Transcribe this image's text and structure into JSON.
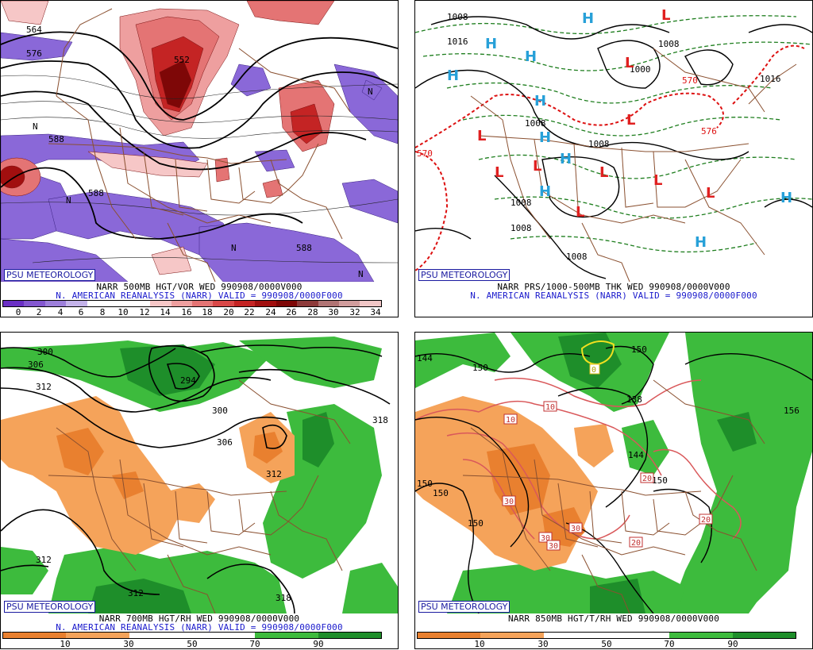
{
  "logo": "PSU METEOROLOGY",
  "panels": {
    "p1": {
      "line1": "NARR 500MB HGT/VOR WED 990908/0000V000",
      "line2": "N. AMERICAN REANALYSIS (NARR) VALID = 990908/0000F000",
      "scale_labels": [
        "0",
        "2",
        "4",
        "6",
        "8",
        "10",
        "12",
        "14",
        "16",
        "18",
        "20",
        "22",
        "24",
        "26",
        "28",
        "30",
        "32",
        "34"
      ],
      "scale_colors": [
        "#6a2fc4",
        "#8457d0",
        "#9d7fdb",
        "#c4b3ea",
        "#ffffff",
        "#ffffff",
        "#ffffff",
        "#f6c7c7",
        "#ee9f9f",
        "#e47474",
        "#d94848",
        "#c42424",
        "#a10f0f",
        "#7e0707",
        "#8d3a3a",
        "#b07474",
        "#d19d9d",
        "#f0c6c6"
      ],
      "map_labels": [
        {
          "t": "564"
        },
        {
          "t": "576"
        },
        {
          "t": "552"
        },
        {
          "t": "588"
        },
        {
          "t": "588"
        },
        {
          "t": "588"
        },
        {
          "t": "N"
        },
        {
          "t": "N"
        },
        {
          "t": "N"
        },
        {
          "t": "N"
        },
        {
          "t": "N"
        }
      ]
    },
    "p2": {
      "line1": "NARR PRS/1000-500MB THK WED 990908/0000V000",
      "line2": "N. AMERICAN REANALYSIS (NARR) VALID = 990908/0000F000",
      "map_labels": [
        {
          "t": "1008"
        },
        {
          "t": "1016"
        },
        {
          "t": "1008"
        },
        {
          "t": "1000"
        },
        {
          "t": "1016"
        },
        {
          "t": "1008"
        },
        {
          "t": "1008"
        },
        {
          "t": "1008"
        },
        {
          "t": "1008"
        },
        {
          "t": "1008"
        },
        {
          "t": "570"
        },
        {
          "t": "570"
        },
        {
          "t": "576"
        },
        {
          "t": "H"
        },
        {
          "t": "H"
        },
        {
          "t": "H"
        },
        {
          "t": "H"
        },
        {
          "t": "H"
        },
        {
          "t": "H"
        },
        {
          "t": "H"
        },
        {
          "t": "H"
        },
        {
          "t": "H"
        },
        {
          "t": "H"
        },
        {
          "t": "L"
        },
        {
          "t": "L"
        },
        {
          "t": "L"
        },
        {
          "t": "L"
        },
        {
          "t": "L"
        },
        {
          "t": "L"
        },
        {
          "t": "L"
        },
        {
          "t": "L"
        },
        {
          "t": "L"
        },
        {
          "t": "L"
        }
      ]
    },
    "p3": {
      "line1": "NARR 700MB HGT/RH WED 990908/0000V000",
      "line2": "N. AMERICAN REANALYSIS (NARR) VALID = 990908/0000F000",
      "scale_labels": [
        "10",
        "30",
        "50",
        "70",
        "90"
      ],
      "map_labels": [
        {
          "t": "300"
        },
        {
          "t": "306"
        },
        {
          "t": "312"
        },
        {
          "t": "294"
        },
        {
          "t": "300"
        },
        {
          "t": "306"
        },
        {
          "t": "312"
        },
        {
          "t": "318"
        },
        {
          "t": "312"
        },
        {
          "t": "312"
        },
        {
          "t": "318"
        }
      ]
    },
    "p4": {
      "line1": "NARR 850MB HGT/T/RH WED 990908/0000V000",
      "scale_labels": [
        "10",
        "30",
        "50",
        "70",
        "90"
      ],
      "map_labels": [
        {
          "t": "144"
        },
        {
          "t": "150"
        },
        {
          "t": "150"
        },
        {
          "t": "150"
        },
        {
          "t": "150"
        },
        {
          "t": "150"
        },
        {
          "t": "156"
        },
        {
          "t": "138"
        },
        {
          "t": "144"
        },
        {
          "t": "150"
        },
        {
          "t": "10"
        },
        {
          "t": "10"
        },
        {
          "t": "20"
        },
        {
          "t": "20"
        },
        {
          "t": "20"
        },
        {
          "t": "30"
        },
        {
          "t": "30"
        },
        {
          "t": "30"
        },
        {
          "t": "30"
        },
        {
          "t": "0"
        }
      ]
    }
  },
  "colors": {
    "rh_dry_dark": "#e9802f",
    "rh_dry": "#f5a35a",
    "rh_moist": "#3dbb3d",
    "rh_moist_dark": "#1e8e2a",
    "vort_neg": "#8a68d8",
    "vort_pos": "#d9585a",
    "border": "#8a5030",
    "high": "#27a0d8",
    "low": "#e02020"
  }
}
